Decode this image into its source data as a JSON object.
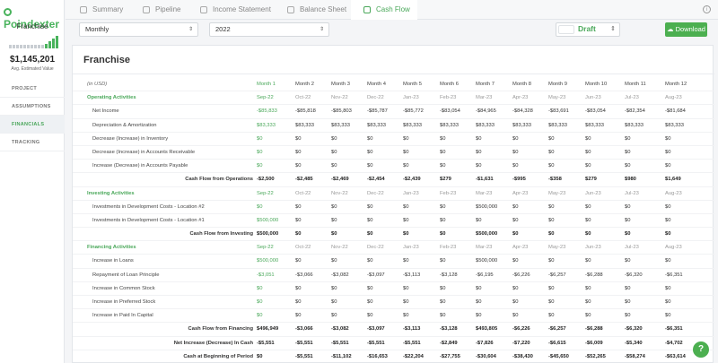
{
  "app": {
    "logo": "Poindexter"
  },
  "sidebar": {
    "company": "Franchise",
    "valuation": "$1,145,201",
    "valuation_label": "Avg. Estimated Value",
    "items": [
      {
        "label": "PROJECT"
      },
      {
        "label": "ASSUMPTIONS"
      },
      {
        "label": "FINANCIALS"
      },
      {
        "label": "TRACKING"
      }
    ]
  },
  "tabs": [
    {
      "label": "Summary",
      "icon": "chart-icon"
    },
    {
      "label": "Pipeline",
      "icon": "funnel-icon"
    },
    {
      "label": "Income Statement",
      "icon": "document-icon"
    },
    {
      "label": "Balance Sheet",
      "icon": "scale-icon"
    },
    {
      "label": "Cash Flow",
      "icon": "swap-icon"
    }
  ],
  "toolbar": {
    "period": "Monthly",
    "year": "2022",
    "status": "Draft",
    "download_label": "Download"
  },
  "card": {
    "title": "Franchise"
  },
  "table": {
    "currency_note": "(in USD)",
    "months": [
      "Month 1",
      "Month 2",
      "Month 3",
      "Month 4",
      "Month 5",
      "Month 6",
      "Month 7",
      "Month 8",
      "Month 9",
      "Month 10",
      "Month 11",
      "Month 12"
    ],
    "rows": [
      {
        "type": "section",
        "label": "Operating Activities",
        "dates": [
          "Sep-22",
          "Oct-22",
          "Nov-22",
          "Dec-22",
          "Jan-23",
          "Feb-23",
          "Mar-23",
          "Apr-23",
          "May-23",
          "Jun-23",
          "Jul-23",
          "Aug-23"
        ]
      },
      {
        "type": "item",
        "label": "Net Income",
        "values": [
          "-$85,833",
          "-$85,818",
          "-$85,803",
          "-$85,787",
          "-$85,772",
          "-$83,054",
          "-$84,965",
          "-$84,328",
          "-$83,691",
          "-$83,054",
          "-$82,354",
          "-$81,684"
        ]
      },
      {
        "type": "item",
        "label": "Depreciation & Amortization",
        "values": [
          "$83,333",
          "$83,333",
          "$83,333",
          "$83,333",
          "$83,333",
          "$83,333",
          "$83,333",
          "$83,333",
          "$83,333",
          "$83,333",
          "$83,333",
          "$83,333"
        ]
      },
      {
        "type": "item",
        "label": "Decrease (Increase) in Inventory",
        "values": [
          "$0",
          "$0",
          "$0",
          "$0",
          "$0",
          "$0",
          "$0",
          "$0",
          "$0",
          "$0",
          "$0",
          "$0"
        ]
      },
      {
        "type": "item",
        "label": "Decrease (Increase) in Accounts Receivable",
        "values": [
          "$0",
          "$0",
          "$0",
          "$0",
          "$0",
          "$0",
          "$0",
          "$0",
          "$0",
          "$0",
          "$0",
          "$0"
        ]
      },
      {
        "type": "item",
        "label": "Increase (Decrease) in Accounts Payable",
        "values": [
          "$0",
          "$0",
          "$0",
          "$0",
          "$0",
          "$0",
          "$0",
          "$0",
          "$0",
          "$0",
          "$0",
          "$0"
        ]
      },
      {
        "type": "total",
        "label": "Cash Flow from Operations",
        "values": [
          "-$2,500",
          "-$2,485",
          "-$2,469",
          "-$2,454",
          "-$2,439",
          "$279",
          "-$1,631",
          "-$995",
          "-$358",
          "$279",
          "$980",
          "$1,649"
        ]
      },
      {
        "type": "section",
        "label": "Investing Activities",
        "dates": [
          "Sep-22",
          "Oct-22",
          "Nov-22",
          "Dec-22",
          "Jan-23",
          "Feb-23",
          "Mar-23",
          "Apr-23",
          "May-23",
          "Jun-23",
          "Jul-23",
          "Aug-23"
        ]
      },
      {
        "type": "item",
        "label": "Investments in Development Costs - Location #2",
        "values": [
          "$0",
          "$0",
          "$0",
          "$0",
          "$0",
          "$0",
          "$500,000",
          "$0",
          "$0",
          "$0",
          "$0",
          "$0"
        ]
      },
      {
        "type": "item",
        "label": "Investments in Development Costs - Location #1",
        "values": [
          "$500,000",
          "$0",
          "$0",
          "$0",
          "$0",
          "$0",
          "$0",
          "$0",
          "$0",
          "$0",
          "$0",
          "$0"
        ]
      },
      {
        "type": "total",
        "label": "Cash Flow from Investing",
        "values": [
          "$500,000",
          "$0",
          "$0",
          "$0",
          "$0",
          "$0",
          "$500,000",
          "$0",
          "$0",
          "$0",
          "$0",
          "$0"
        ]
      },
      {
        "type": "section",
        "label": "Financing Activities",
        "dates": [
          "Sep-22",
          "Oct-22",
          "Nov-22",
          "Dec-22",
          "Jan-23",
          "Feb-23",
          "Mar-23",
          "Apr-23",
          "May-23",
          "Jun-23",
          "Jul-23",
          "Aug-23"
        ]
      },
      {
        "type": "item",
        "label": "Increase in Loans",
        "values": [
          "$500,000",
          "$0",
          "$0",
          "$0",
          "$0",
          "$0",
          "$500,000",
          "$0",
          "$0",
          "$0",
          "$0",
          "$0"
        ]
      },
      {
        "type": "item",
        "label": "Repayment of Loan Principle",
        "values": [
          "-$3,051",
          "-$3,066",
          "-$3,082",
          "-$3,097",
          "-$3,113",
          "-$3,128",
          "-$6,195",
          "-$6,226",
          "-$6,257",
          "-$6,288",
          "-$6,320",
          "-$6,351"
        ]
      },
      {
        "type": "item",
        "label": "Increase in Common Stock",
        "values": [
          "$0",
          "$0",
          "$0",
          "$0",
          "$0",
          "$0",
          "$0",
          "$0",
          "$0",
          "$0",
          "$0",
          "$0"
        ]
      },
      {
        "type": "item",
        "label": "Increase in Preferred Stock",
        "values": [
          "$0",
          "$0",
          "$0",
          "$0",
          "$0",
          "$0",
          "$0",
          "$0",
          "$0",
          "$0",
          "$0",
          "$0"
        ]
      },
      {
        "type": "item",
        "label": "Increase in Paid In Capital",
        "values": [
          "$0",
          "$0",
          "$0",
          "$0",
          "$0",
          "$0",
          "$0",
          "$0",
          "$0",
          "$0",
          "$0",
          "$0"
        ]
      },
      {
        "type": "total",
        "label": "Cash Flow from Financing",
        "values": [
          "$496,949",
          "-$3,066",
          "-$3,082",
          "-$3,097",
          "-$3,113",
          "-$3,128",
          "$493,805",
          "-$6,226",
          "-$6,257",
          "-$6,288",
          "-$6,320",
          "-$6,351"
        ]
      },
      {
        "type": "total",
        "label": "Net Increase (Decrease) In Cash",
        "values": [
          "-$5,551",
          "-$5,551",
          "-$5,551",
          "-$5,551",
          "-$5,551",
          "-$2,849",
          "-$7,826",
          "-$7,220",
          "-$6,615",
          "-$6,009",
          "-$5,340",
          "-$4,702"
        ]
      },
      {
        "type": "total",
        "label": "Cash at Beginning of Period",
        "values": [
          "$0",
          "-$5,551",
          "-$11,102",
          "-$16,653",
          "-$22,204",
          "-$27,755",
          "-$30,604",
          "-$38,430",
          "-$45,650",
          "-$52,265",
          "-$58,274",
          "-$63,614"
        ]
      },
      {
        "type": "total",
        "label": "Cash at End of Period",
        "values": [
          "-$5,551",
          "-$11,102",
          "-$16,653",
          "-$22,204",
          "-$27,755",
          "-$30,604",
          "-$38,430",
          "-$45,650",
          "-$52,265",
          "-$58,274",
          "-$63,614",
          "-$68,316"
        ]
      }
    ]
  },
  "help": {
    "label": "?"
  },
  "colors": {
    "accent": "#4caf50",
    "positive": "#4aa85a"
  }
}
